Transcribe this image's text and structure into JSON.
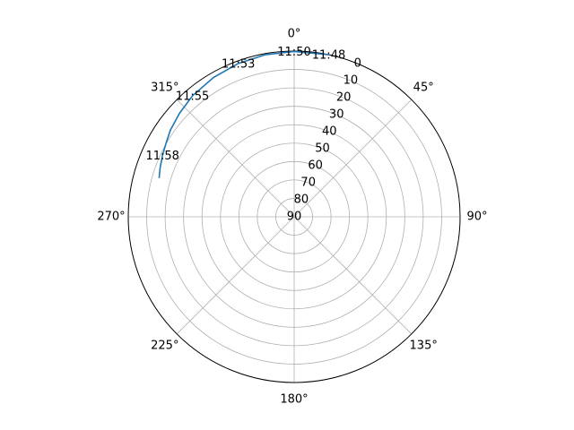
{
  "chart_data": {
    "type": "line",
    "projection": "polar",
    "theta_zero_location": "N",
    "theta_direction": "clockwise",
    "theta_ticks": [
      {
        "deg": 0,
        "label": "0°"
      },
      {
        "deg": 45,
        "label": "45°"
      },
      {
        "deg": 90,
        "label": "90°"
      },
      {
        "deg": 135,
        "label": "135°"
      },
      {
        "deg": 180,
        "label": "180°"
      },
      {
        "deg": 225,
        "label": "225°"
      },
      {
        "deg": 270,
        "label": "270°"
      },
      {
        "deg": 315,
        "label": "315°"
      }
    ],
    "r_ticks": [
      {
        "value": 0,
        "label": "0"
      },
      {
        "value": 10,
        "label": "10"
      },
      {
        "value": 20,
        "label": "20"
      },
      {
        "value": 30,
        "label": "30"
      },
      {
        "value": 40,
        "label": "40"
      },
      {
        "value": 50,
        "label": "50"
      },
      {
        "value": 60,
        "label": "60"
      },
      {
        "value": 70,
        "label": "70"
      },
      {
        "value": 80,
        "label": "80"
      },
      {
        "value": 90,
        "label": "90"
      }
    ],
    "r_inverted": true,
    "rlim": [
      90,
      0
    ],
    "grid": true,
    "series": [
      {
        "color": "#1f77b4",
        "theta_deg": [
          12,
          0,
          350,
          340,
          330,
          320,
          312,
          305,
          300,
          295,
          290,
          286
        ],
        "r": [
          0,
          0.2,
          0.6,
          1.4,
          2.6,
          4.2,
          6.2,
          8.0,
          9.8,
          11.2,
          12.6,
          13.8
        ]
      }
    ],
    "annotations": [
      {
        "text": "11:48",
        "theta_deg": 12,
        "r": 0
      },
      {
        "text": "11:50",
        "theta_deg": 0,
        "r": 0.2
      },
      {
        "text": "11:53",
        "theta_deg": 340,
        "r": 1.4
      },
      {
        "text": "11:55",
        "theta_deg": 320,
        "r": 4.2
      },
      {
        "text": "11:58",
        "theta_deg": 295,
        "r": 11.2
      }
    ]
  }
}
